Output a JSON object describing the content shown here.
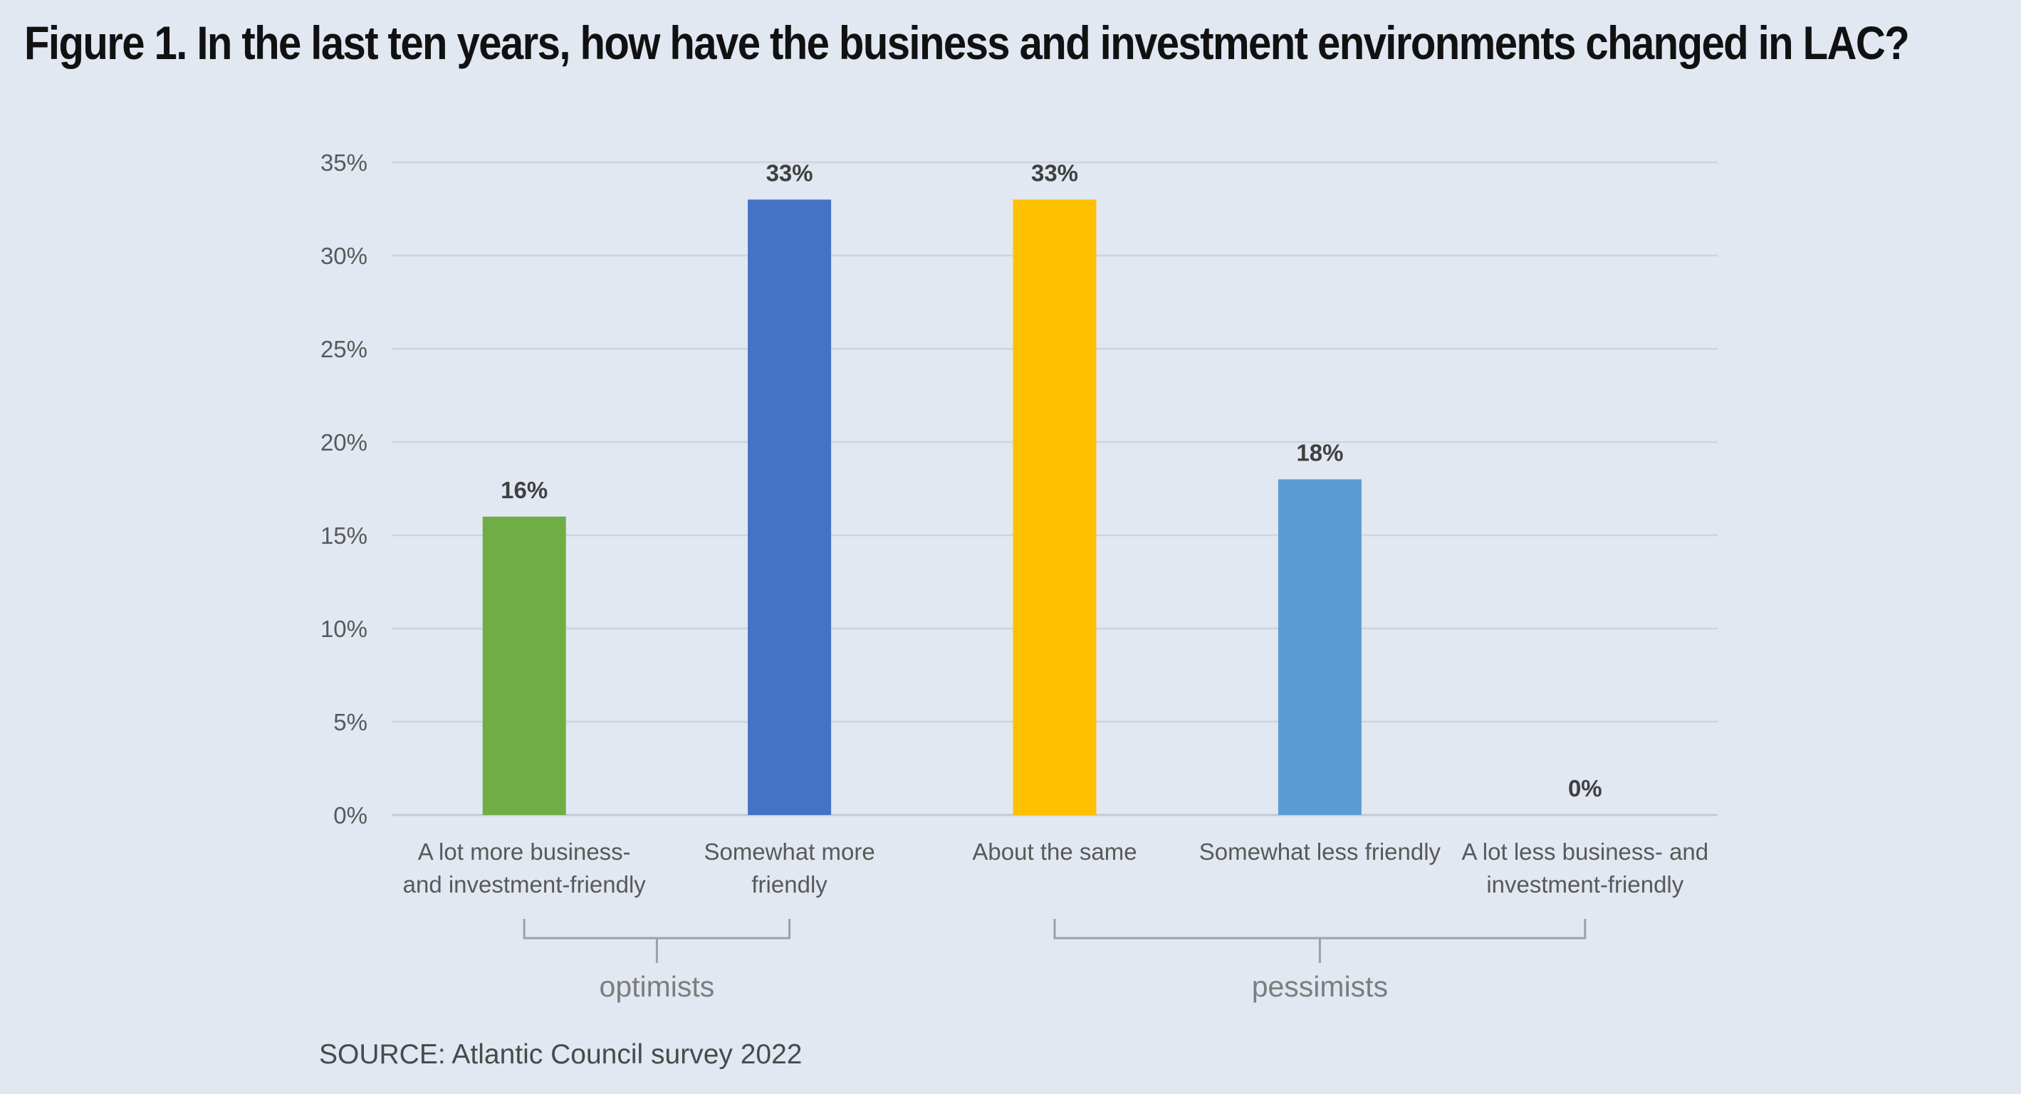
{
  "figure": {
    "title": "Figure 1. In the last ten years, how have the business and investment environments changed in LAC?"
  },
  "chart_data": {
    "type": "bar",
    "title": "Figure 1. In the last ten years, how have the business and investment environments changed in LAC?",
    "categories": [
      [
        "A lot more business-",
        "and investment-friendly"
      ],
      [
        "Somewhat more",
        "friendly"
      ],
      [
        "About the same"
      ],
      [
        "Somewhat less friendly"
      ],
      [
        "A lot less business- and",
        "investment-friendly"
      ]
    ],
    "values": [
      16,
      33,
      33,
      18,
      0
    ],
    "value_labels": [
      "16%",
      "33%",
      "33%",
      "18%",
      "0%"
    ],
    "colors": [
      "#70ad47",
      "#4472c4",
      "#ffc000",
      "#5b9bd5",
      "#a5a5a5"
    ],
    "ylim": [
      0,
      35
    ],
    "yticks": [
      0,
      5,
      10,
      15,
      20,
      25,
      30,
      35
    ],
    "ytick_labels": [
      "0%",
      "5%",
      "10%",
      "15%",
      "20%",
      "25%",
      "30%",
      "35%"
    ],
    "xlabel": "",
    "ylabel": "",
    "grid": true,
    "groups": [
      {
        "label": "optimists",
        "from": 0,
        "to": 1
      },
      {
        "label": "pessimists",
        "from": 2,
        "to": 4
      }
    ]
  },
  "source": {
    "prefix": "SOURCE:",
    "text": " Atlantic Council survey 2022"
  }
}
